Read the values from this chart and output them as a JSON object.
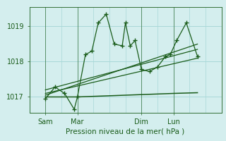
{
  "title": "Pression niveau de la mer( hPa )",
  "bg_color": "#d4eeee",
  "grid_color": "#a8d8d8",
  "line_color": "#1a5c1a",
  "yticks": [
    1017,
    1018,
    1019
  ],
  "ylim": [
    1016.55,
    1019.55
  ],
  "xtick_labels": [
    "Sam",
    "Mar",
    "Dim",
    "Lun"
  ],
  "xtick_positions": [
    1,
    3,
    7,
    9
  ],
  "xlim": [
    0,
    12
  ],
  "x_vlines": [
    1,
    3,
    7,
    9
  ],
  "x_minor_grid": [
    0,
    1,
    2,
    3,
    4,
    5,
    6,
    7,
    8,
    9,
    10,
    11,
    12
  ],
  "series1_x": [
    1.0,
    1.6,
    2.2,
    2.8,
    3.0,
    3.5,
    3.9,
    4.3,
    4.8,
    5.3,
    5.8,
    6.0,
    6.3,
    6.6,
    7.0,
    7.5,
    8.0,
    8.5,
    8.8,
    9.2,
    9.8,
    10.5
  ],
  "series1_y": [
    1016.95,
    1017.28,
    1017.1,
    1016.65,
    1017.0,
    1018.2,
    1018.3,
    1019.1,
    1019.35,
    1018.5,
    1018.45,
    1019.1,
    1018.45,
    1018.6,
    1017.78,
    1017.72,
    1017.85,
    1018.15,
    1018.2,
    1018.6,
    1019.1,
    1018.15
  ],
  "series2_x": [
    1.0,
    3.0,
    6.0,
    9.0,
    10.5
  ],
  "series2_y": [
    1017.0,
    1017.0,
    1017.05,
    1017.1,
    1017.12
  ],
  "trend1_x": [
    1.0,
    10.5
  ],
  "trend1_y": [
    1017.1,
    1018.1
  ],
  "trend2_x": [
    1.0,
    10.5
  ],
  "trend2_y": [
    1017.2,
    1018.35
  ],
  "trend3_x": [
    1.0,
    10.5
  ],
  "trend3_y": [
    1017.05,
    1018.5
  ]
}
